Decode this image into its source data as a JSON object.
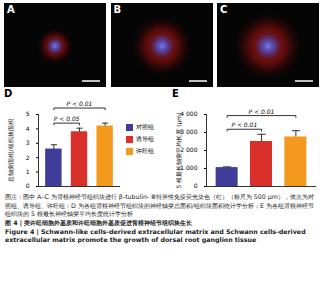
{
  "images": [
    {
      "label": "A"
    },
    {
      "label": "B"
    },
    {
      "label": "C"
    }
  ],
  "chart_data": [
    {
      "panel": "D",
      "type": "bar",
      "ylabel": "总轴突面积/组织块面积",
      "categories": [
        "对照组",
        "诱导组",
        "许旺组"
      ],
      "values": [
        2.6,
        3.8,
        4.2
      ],
      "errors": [
        0.3,
        0.25,
        0.2
      ],
      "colors": [
        "#3f3d99",
        "#d9302b",
        "#f39a1e"
      ],
      "ylim": [
        0,
        5
      ],
      "yticks": [
        0,
        1,
        2,
        3,
        4,
        5
      ],
      "legend": "right",
      "comparisons": [
        {
          "from": "对照组",
          "to": "诱导组",
          "label": "P < 0.05"
        },
        {
          "from": "对照组",
          "to": "许旺组",
          "label": "P < 0.01"
        }
      ]
    },
    {
      "panel": "E",
      "type": "bar",
      "ylabel": "5 根最长轴突平均长度 (μm)",
      "categories": [
        "对照组",
        "诱导组",
        "许旺组"
      ],
      "values": [
        1050,
        2500,
        2750
      ],
      "errors": [
        40,
        400,
        350
      ],
      "colors": [
        "#3f3d99",
        "#d9302b",
        "#f39a1e"
      ],
      "ylim": [
        0,
        4000
      ],
      "yticks": [
        0,
        {
          "value": 1000,
          "label": "1 000"
        },
        {
          "value": 2000,
          "label": "2 000"
        },
        {
          "value": 3000,
          "label": "3 000"
        },
        {
          "value": 4000,
          "label": "4 000"
        }
      ],
      "comparisons": [
        {
          "from": "对照组",
          "to": "诱导组",
          "label": "P < 0.01"
        },
        {
          "from": "对照组",
          "to": "许旺组",
          "label": "P < 0.01"
        }
      ]
    }
  ],
  "caption": {
    "note": "图注：图中 A–C 为背根神经节组织块进行 β-tubulin- Ⅲ特异性免疫荧光染色（红）（标尺为 500 μm），依次为对照组、诱导组、许旺组；D 为各组背根神经节组织块的神经轴突总面积/组织块面积统计学分析；E 为各组背根神经节组织块的 5 根最长神经轴突平均长度统计学分析",
    "title_cn": "图 4 | 类许旺细胞外基质和许旺细胞外基质促进背根神经节组织块生长",
    "title_en": "Figure 4 | Schwann-like cells-derived extracellular matrix and Schwann cells-derived extracellular matrix promote the growth of dorsal root ganglion tissue"
  }
}
